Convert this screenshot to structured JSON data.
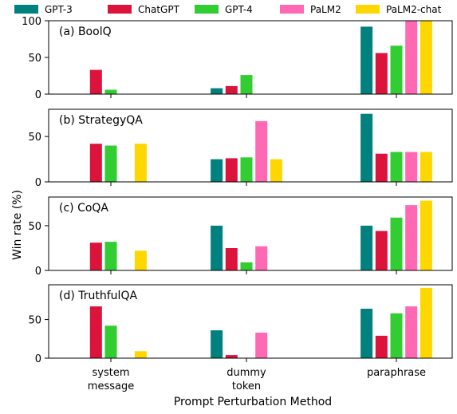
{
  "legend": {
    "placement": "top",
    "entries": [
      {
        "name": "GPT-3",
        "color": "#00807f"
      },
      {
        "name": "ChatGPT",
        "color": "#dc143c"
      },
      {
        "name": "GPT-4",
        "color": "#32cd32"
      },
      {
        "name": "PaLM2",
        "color": "#ff69b4"
      },
      {
        "name": "PaLM2-chat",
        "color": "#ffd700"
      }
    ]
  },
  "shared_ylabel": "Win rate (%)",
  "shared_xlabel": "Prompt Perturbation Method",
  "categories": [
    "system\nmessage",
    "dummy\ntoken",
    "paraphrase"
  ],
  "chart_data": [
    {
      "type": "bar",
      "title": "(a) BoolQ",
      "categories": [
        "system\nmessage",
        "dummy\ntoken",
        "paraphrase"
      ],
      "ylim": [
        0,
        100
      ],
      "yticks": [
        0,
        50,
        100
      ],
      "grid": false,
      "series": [
        {
          "name": "GPT-3",
          "values": [
            0,
            8,
            92
          ]
        },
        {
          "name": "ChatGPT",
          "values": [
            33,
            11,
            56
          ]
        },
        {
          "name": "GPT-4",
          "values": [
            6,
            26,
            66
          ]
        },
        {
          "name": "PaLM2",
          "values": [
            0,
            0,
            100
          ]
        },
        {
          "name": "PaLM2-chat",
          "values": [
            0,
            0,
            100
          ]
        }
      ]
    },
    {
      "type": "bar",
      "title": "(b) StrategyQA",
      "categories": [
        "system\nmessage",
        "dummy\ntoken",
        "paraphrase"
      ],
      "ylim": [
        0,
        80
      ],
      "yticks": [
        0,
        50
      ],
      "grid": false,
      "series": [
        {
          "name": "GPT-3",
          "values": [
            0,
            25,
            75
          ]
        },
        {
          "name": "ChatGPT",
          "values": [
            42,
            26,
            31
          ]
        },
        {
          "name": "GPT-4",
          "values": [
            40,
            27,
            33
          ]
        },
        {
          "name": "PaLM2",
          "values": [
            0,
            67,
            33
          ]
        },
        {
          "name": "PaLM2-chat",
          "values": [
            42,
            25,
            33
          ]
        }
      ]
    },
    {
      "type": "bar",
      "title": "(c) CoQA",
      "categories": [
        "system\nmessage",
        "dummy\ntoken",
        "paraphrase"
      ],
      "ylim": [
        0,
        82
      ],
      "yticks": [
        0,
        50
      ],
      "grid": false,
      "series": [
        {
          "name": "GPT-3",
          "values": [
            0,
            50,
            50
          ]
        },
        {
          "name": "ChatGPT",
          "values": [
            31,
            25,
            44
          ]
        },
        {
          "name": "GPT-4",
          "values": [
            32,
            9,
            59
          ]
        },
        {
          "name": "PaLM2",
          "values": [
            0,
            27,
            73
          ]
        },
        {
          "name": "PaLM2-chat",
          "values": [
            22,
            0,
            78
          ]
        }
      ]
    },
    {
      "type": "bar",
      "title": "(d) TruthfulQA",
      "categories": [
        "system\nmessage",
        "dummy\ntoken",
        "paraphrase"
      ],
      "ylim": [
        0,
        95
      ],
      "yticks": [
        0,
        50
      ],
      "grid": false,
      "series": [
        {
          "name": "GPT-3",
          "values": [
            0,
            36,
            64
          ]
        },
        {
          "name": "ChatGPT",
          "values": [
            67,
            4,
            29
          ]
        },
        {
          "name": "GPT-4",
          "values": [
            42,
            0,
            58
          ]
        },
        {
          "name": "PaLM2",
          "values": [
            0,
            33,
            67
          ]
        },
        {
          "name": "PaLM2-chat",
          "values": [
            9,
            0,
            91
          ]
        }
      ]
    }
  ]
}
